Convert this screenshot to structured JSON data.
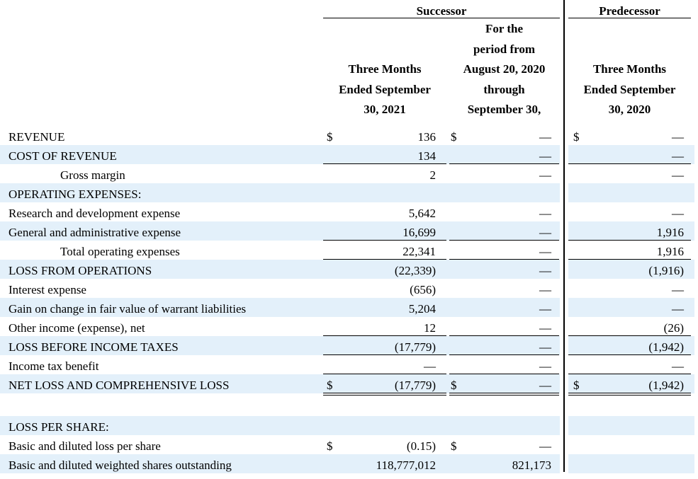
{
  "header": {
    "successor": "Successor",
    "predecessor": "Predecessor",
    "col1": [
      "Three Months",
      "Ended September",
      "30, 2021"
    ],
    "col2": [
      "For the",
      "period from",
      "August 20, 2020",
      "through",
      "September 30,"
    ],
    "col3": [
      "Three Months",
      "Ended September",
      "30, 2020"
    ]
  },
  "rows": [
    {
      "label": "REVENUE",
      "c1_cur": "$",
      "c1": "136",
      "c2_cur": "$",
      "c2": "—",
      "c3_cur": "$",
      "c3": "—"
    },
    {
      "label": "COST OF REVENUE",
      "c1": "134",
      "c2": "—",
      "c3": "—"
    },
    {
      "label": "Gross margin",
      "c1": "2",
      "c2": "—",
      "c3": "—"
    },
    {
      "label": "OPERATING EXPENSES:",
      "c1": "",
      "c2": "",
      "c3": ""
    },
    {
      "label": "Research and development expense",
      "c1": "5,642",
      "c2": "—",
      "c3": "—"
    },
    {
      "label": "General and administrative expense",
      "c1": "16,699",
      "c2": "—",
      "c3": "1,916"
    },
    {
      "label": "Total operating expenses",
      "c1": "22,341",
      "c2": "—",
      "c3": "1,916"
    },
    {
      "label": "LOSS FROM OPERATIONS",
      "c1": "(22,339)",
      "c2": "—",
      "c3": "(1,916)"
    },
    {
      "label": "Interest expense",
      "c1": "(656)",
      "c2": "—",
      "c3": "—"
    },
    {
      "label": "Gain on change in fair value of warrant liabilities",
      "c1": "5,204",
      "c2": "—",
      "c3": "—"
    },
    {
      "label": "Other income (expense), net",
      "c1": "12",
      "c2": "—",
      "c3": "(26)"
    },
    {
      "label": "LOSS BEFORE INCOME TAXES",
      "c1": "(17,779)",
      "c2": "—",
      "c3": "(1,942)"
    },
    {
      "label": "Income tax benefit",
      "c1": "—",
      "c2": "—",
      "c3": "—"
    },
    {
      "label": "NET LOSS AND COMPREHENSIVE LOSS",
      "c1_cur": "$",
      "c1": "(17,779)",
      "c2_cur": "$",
      "c2": "—",
      "c3_cur": "$",
      "c3": "(1,942)"
    },
    {
      "label": "LOSS PER SHARE:",
      "c1": "",
      "c2": "",
      "c3": ""
    },
    {
      "label": "Basic and diluted loss per share",
      "c1_cur": "$",
      "c1": "(0.15)",
      "c2_cur": "$",
      "c2": "—",
      "c3": ""
    },
    {
      "label": "Basic and diluted weighted shares outstanding",
      "c1": "118,777,012",
      "c2": "821,173",
      "c3": ""
    }
  ]
}
